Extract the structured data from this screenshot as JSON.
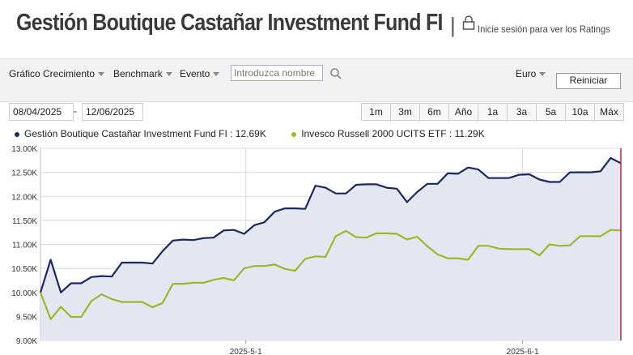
{
  "header": {
    "title": "Gestión Boutique Castañar Investment Fund FI",
    "separator": "|",
    "ratings_link": "Inicie sesión para ver los Ratings"
  },
  "toolbar": {
    "growth_label": "Gráfico Crecimiento",
    "benchmark_label": "Benchmark",
    "event_label": "Evento",
    "search_placeholder": "Introduzca nombre",
    "currency_label": "Euro",
    "reset_label": "Reiniciar"
  },
  "date_range": {
    "start": "08/04/2025",
    "separator": "-",
    "end": "12/06/2025"
  },
  "ranges": [
    "1m",
    "3m",
    "6m",
    "Año",
    "1a",
    "3a",
    "5a",
    "10a",
    "Máx"
  ],
  "legend": [
    {
      "label": "Gestión Boutique Castañar Investment Fund FI : 12.69K",
      "color": "#1a2a5e"
    },
    {
      "label": "Invesco Russell 2000 UCITS ETF : 11.29K",
      "color": "#9ab82a"
    }
  ],
  "colors": {
    "fund": "#1a2a5e",
    "benchmark": "#9ab82a",
    "area": "#e4e7f2",
    "cursor": "#a83232"
  },
  "chart_data": {
    "type": "line",
    "x_start": "2025-04-08",
    "x_end": "2025-06-12",
    "x_ticks": [
      {
        "date": "2025-05-01",
        "label": "2025-5-1"
      },
      {
        "date": "2025-06-01",
        "label": "2025-6-1"
      }
    ],
    "y_ticks": [
      "9.00K",
      "9.50K",
      "10.00K",
      "10.50K",
      "11.00K",
      "11.50K",
      "12.00K",
      "12.50K",
      "13.00K"
    ],
    "ylim": [
      9000,
      13000
    ],
    "grid": true,
    "series": [
      {
        "name": "Gestión Boutique Castañar Investment Fund FI",
        "points": [
          [
            "2025-04-08",
            10000
          ],
          [
            "2025-04-09",
            10680
          ],
          [
            "2025-04-10",
            10000
          ],
          [
            "2025-04-11",
            10190
          ],
          [
            "2025-04-14",
            10190
          ],
          [
            "2025-04-15",
            10320
          ],
          [
            "2025-04-16",
            10340
          ],
          [
            "2025-04-17",
            10330
          ],
          [
            "2025-04-18",
            10620
          ],
          [
            "2025-04-21",
            10620
          ],
          [
            "2025-04-22",
            10620
          ],
          [
            "2025-04-23",
            10600
          ],
          [
            "2025-04-24",
            10860
          ],
          [
            "2025-04-25",
            11080
          ],
          [
            "2025-04-28",
            11100
          ],
          [
            "2025-04-29",
            11090
          ],
          [
            "2025-04-30",
            11130
          ],
          [
            "2025-05-01",
            11140
          ],
          [
            "2025-05-02",
            11290
          ],
          [
            "2025-05-05",
            11300
          ],
          [
            "2025-05-06",
            11220
          ],
          [
            "2025-05-07",
            11400
          ],
          [
            "2025-05-08",
            11460
          ],
          [
            "2025-05-09",
            11680
          ],
          [
            "2025-05-12",
            11750
          ],
          [
            "2025-05-13",
            11750
          ],
          [
            "2025-05-14",
            11740
          ],
          [
            "2025-05-15",
            12220
          ],
          [
            "2025-05-16",
            12180
          ],
          [
            "2025-05-19",
            12060
          ],
          [
            "2025-05-20",
            12060
          ],
          [
            "2025-05-21",
            12240
          ],
          [
            "2025-05-22",
            12250
          ],
          [
            "2025-05-23",
            12250
          ],
          [
            "2025-05-26",
            12180
          ],
          [
            "2025-05-27",
            12160
          ],
          [
            "2025-05-28",
            11880
          ],
          [
            "2025-05-29",
            12090
          ],
          [
            "2025-05-30",
            12260
          ],
          [
            "2025-06-01",
            12260
          ],
          [
            "2025-06-02",
            12480
          ],
          [
            "2025-06-03",
            12470
          ],
          [
            "2025-06-04",
            12600
          ],
          [
            "2025-06-05",
            12560
          ],
          [
            "2025-06-06",
            12380
          ],
          [
            "2025-06-07",
            12380
          ],
          [
            "2025-06-08",
            12380
          ],
          [
            "2025-06-09",
            12450
          ],
          [
            "2025-06-09",
            12460
          ],
          [
            "2025-06-10",
            12350
          ],
          [
            "2025-06-10",
            12300
          ],
          [
            "2025-06-11",
            12300
          ],
          [
            "2025-06-11",
            12500
          ],
          [
            "2025-06-11",
            12500
          ],
          [
            "2025-06-12",
            12500
          ],
          [
            "2025-06-12",
            12520
          ],
          [
            "2025-06-12",
            12800
          ],
          [
            "2025-06-12",
            12690
          ]
        ]
      },
      {
        "name": "Invesco Russell 2000 UCITS ETF",
        "points": [
          [
            "2025-04-08",
            10000
          ],
          [
            "2025-04-09",
            9440
          ],
          [
            "2025-04-10",
            9700
          ],
          [
            "2025-04-11",
            9490
          ],
          [
            "2025-04-14",
            9490
          ],
          [
            "2025-04-15",
            9820
          ],
          [
            "2025-04-16",
            9960
          ],
          [
            "2025-04-17",
            9860
          ],
          [
            "2025-04-18",
            9800
          ],
          [
            "2025-04-21",
            9800
          ],
          [
            "2025-04-22",
            9800
          ],
          [
            "2025-04-23",
            9690
          ],
          [
            "2025-04-24",
            9780
          ],
          [
            "2025-04-25",
            10180
          ],
          [
            "2025-04-28",
            10180
          ],
          [
            "2025-04-29",
            10200
          ],
          [
            "2025-04-30",
            10200
          ],
          [
            "2025-05-01",
            10260
          ],
          [
            "2025-05-02",
            10300
          ],
          [
            "2025-05-05",
            10250
          ],
          [
            "2025-05-06",
            10500
          ],
          [
            "2025-05-07",
            10550
          ],
          [
            "2025-05-08",
            10550
          ],
          [
            "2025-05-09",
            10580
          ],
          [
            "2025-05-12",
            10490
          ],
          [
            "2025-05-13",
            10450
          ],
          [
            "2025-05-14",
            10700
          ],
          [
            "2025-05-15",
            10750
          ],
          [
            "2025-05-16",
            10740
          ],
          [
            "2025-05-19",
            11170
          ],
          [
            "2025-05-20",
            11280
          ],
          [
            "2025-05-21",
            11150
          ],
          [
            "2025-05-22",
            11140
          ],
          [
            "2025-05-23",
            11230
          ],
          [
            "2025-05-26",
            11230
          ],
          [
            "2025-05-27",
            11220
          ],
          [
            "2025-05-28",
            11100
          ],
          [
            "2025-05-29",
            11160
          ],
          [
            "2025-05-30",
            10960
          ],
          [
            "2025-06-01",
            10790
          ],
          [
            "2025-06-02",
            10710
          ],
          [
            "2025-06-03",
            10710
          ],
          [
            "2025-06-04",
            10680
          ],
          [
            "2025-06-05",
            10970
          ],
          [
            "2025-06-06",
            10970
          ],
          [
            "2025-06-07",
            10910
          ],
          [
            "2025-06-08",
            10900
          ],
          [
            "2025-06-09",
            10900
          ],
          [
            "2025-06-09",
            10900
          ],
          [
            "2025-06-10",
            10770
          ],
          [
            "2025-06-10",
            11000
          ],
          [
            "2025-06-11",
            10970
          ],
          [
            "2025-06-11",
            10980
          ],
          [
            "2025-06-11",
            11170
          ],
          [
            "2025-06-12",
            11170
          ],
          [
            "2025-06-12",
            11170
          ],
          [
            "2025-06-12",
            11300
          ],
          [
            "2025-06-12",
            11290
          ]
        ]
      }
    ]
  }
}
